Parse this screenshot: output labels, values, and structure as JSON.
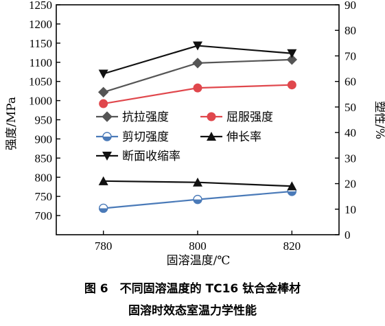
{
  "chart_data": {
    "type": "line",
    "x": [
      780,
      800,
      820
    ],
    "xlabel": "固溶温度/℃",
    "xlim": [
      770,
      830
    ],
    "ylabel_left": "强度/MPa",
    "ylim_left": [
      650,
      1250
    ],
    "yticks_left": [
      700,
      750,
      800,
      850,
      900,
      950,
      1000,
      1050,
      1100,
      1150,
      1200,
      1250
    ],
    "ylabel_right": "塑性/%",
    "ylim_right": [
      0,
      90
    ],
    "yticks_right": [
      0,
      10,
      20,
      30,
      40,
      50,
      60,
      70,
      80,
      90
    ],
    "grid": false,
    "legend_position": "center",
    "series": [
      {
        "name": "抗拉强度",
        "axis": "left",
        "values": [
          1022,
          1098,
          1107
        ],
        "color": "#555555",
        "marker": "diamond"
      },
      {
        "name": "屈服强度",
        "axis": "left",
        "values": [
          992,
          1033,
          1041
        ],
        "color": "#e0474c",
        "marker": "circle"
      },
      {
        "name": "剪切强度",
        "axis": "left",
        "values": [
          719,
          742,
          763
        ],
        "color": "#4a7ab8",
        "marker": "circle-half"
      },
      {
        "name": "伸长率",
        "axis": "right",
        "values": [
          21,
          20.5,
          19
        ],
        "color": "#111111",
        "marker": "triangle-up"
      },
      {
        "name": "断面收缩率",
        "axis": "right",
        "values": [
          63,
          74,
          71
        ],
        "color": "#111111",
        "marker": "triangle-down"
      }
    ]
  },
  "caption": {
    "line1": "图 6　不同固溶温度的 TC16 钛合金棒材",
    "line2": "固溶时效态室温力学性能"
  }
}
